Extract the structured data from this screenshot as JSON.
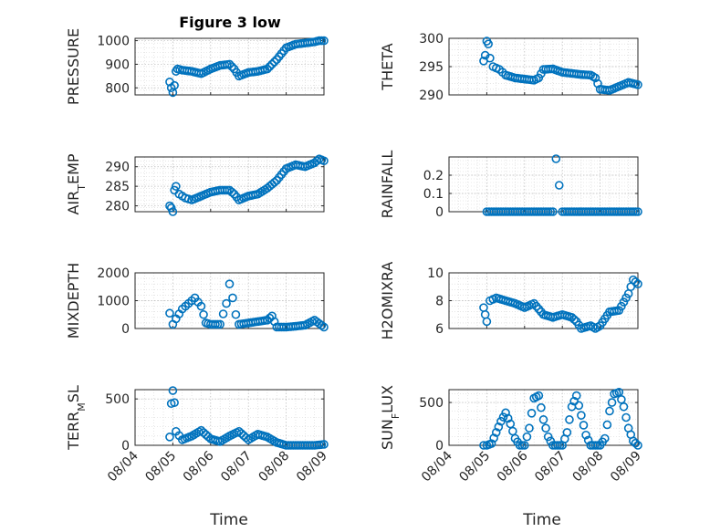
{
  "figure_title": "Figure 3 low",
  "colors": {
    "marker": "#0072BD",
    "axis": "#262626"
  },
  "chart_data": [
    {
      "type": "scatter",
      "ylabel": "PRESSURE",
      "ylim": [
        770,
        1010
      ],
      "yticks": [
        800,
        900,
        1000
      ],
      "ytick_labels": [
        "800",
        "900",
        "1000"
      ],
      "x": [
        "08/04 22:00",
        "08/04 23:00",
        "08/05 00:00",
        "08/05 01:00",
        "08/05 02:00",
        "08/05 03:00",
        "08/05 06:00",
        "08/05 12:00",
        "08/05 18:00",
        "08/06 00:00",
        "08/06 06:00",
        "08/06 12:00",
        "08/06 15:00",
        "08/06 18:00",
        "08/07 00:00",
        "08/07 06:00",
        "08/07 12:00",
        "08/07 18:00",
        "08/08 00:00",
        "08/08 06:00",
        "08/08 12:00",
        "08/08 18:00",
        "08/08 21:00",
        "08/09 00:00"
      ],
      "y": [
        825,
        800,
        780,
        810,
        870,
        880,
        875,
        870,
        860,
        880,
        895,
        900,
        880,
        850,
        865,
        870,
        880,
        920,
        970,
        985,
        990,
        995,
        1000,
        1000
      ]
    },
    {
      "type": "scatter",
      "ylabel": "THETA",
      "ylim": [
        290,
        300
      ],
      "yticks": [
        290,
        295,
        300
      ],
      "ytick_labels": [
        "290",
        "295",
        "300"
      ],
      "x": [
        "08/04 22:00",
        "08/04 23:00",
        "08/05 00:00",
        "08/05 01:00",
        "08/05 02:00",
        "08/05 04:00",
        "08/05 08:00",
        "08/05 12:00",
        "08/05 18:00",
        "08/06 00:00",
        "08/06 06:00",
        "08/06 09:00",
        "08/06 12:00",
        "08/06 18:00",
        "08/07 00:00",
        "08/07 06:00",
        "08/07 12:00",
        "08/07 18:00",
        "08/07 21:00",
        "08/08 00:00",
        "08/08 06:00",
        "08/08 12:00",
        "08/08 18:00",
        "08/09 00:00"
      ],
      "y": [
        296,
        297,
        299.5,
        299,
        296.5,
        295,
        294.5,
        293.5,
        293,
        292.8,
        292.6,
        293,
        294.5,
        294.6,
        294,
        293.8,
        293.6,
        293.5,
        293,
        291,
        290.8,
        291.5,
        292.2,
        291.8
      ]
    },
    {
      "type": "scatter",
      "ylabel": "AIR_TEMP",
      "ylim": [
        278.5,
        292.5
      ],
      "yticks": [
        280,
        285,
        290
      ],
      "ytick_labels": [
        "280",
        "285",
        "290"
      ],
      "x": [
        "08/04 22:00",
        "08/04 23:00",
        "08/05 00:00",
        "08/05 01:00",
        "08/05 02:00",
        "08/05 04:00",
        "08/05 08:00",
        "08/05 12:00",
        "08/05 18:00",
        "08/06 00:00",
        "08/06 06:00",
        "08/06 12:00",
        "08/06 15:00",
        "08/06 18:00",
        "08/07 00:00",
        "08/07 06:00",
        "08/07 12:00",
        "08/07 18:00",
        "08/08 00:00",
        "08/08 06:00",
        "08/08 12:00",
        "08/08 18:00",
        "08/08 21:00",
        "08/09 00:00"
      ],
      "y": [
        280,
        279.5,
        278.5,
        284,
        285,
        283,
        282,
        281.5,
        282.5,
        283.5,
        284,
        284,
        283,
        281.5,
        282.5,
        283,
        284.5,
        286.5,
        289.5,
        290.5,
        290,
        291,
        292,
        291.5
      ]
    },
    {
      "type": "scatter",
      "ylabel": "RAINFALL",
      "ylim": [
        0,
        0.3
      ],
      "yticks": [
        0,
        0.1,
        0.2
      ],
      "ytick_labels": [
        "0",
        "0.1",
        "0.2"
      ],
      "x": [
        "08/05 00:00",
        "08/05 06:00",
        "08/05 12:00",
        "08/05 18:00",
        "08/06 00:00",
        "08/06 06:00",
        "08/06 12:00",
        "08/06 18:00",
        "08/06 20:00",
        "08/07 00:00",
        "08/07 06:00",
        "08/07 12:00",
        "08/07 18:00",
        "08/08 00:00",
        "08/08 06:00",
        "08/08 12:00",
        "08/08 18:00",
        "08/09 00:00"
      ],
      "y": [
        0,
        0,
        0,
        0,
        0,
        0,
        0,
        0,
        0.29,
        0,
        0,
        0,
        0,
        0,
        0,
        0,
        0,
        0
      ]
    },
    {
      "type": "scatter",
      "ylabel": "MIXDEPTH",
      "ylim": [
        0,
        2000
      ],
      "yticks": [
        0,
        1000,
        2000
      ],
      "ytick_labels": [
        "0",
        "1000",
        "2000"
      ],
      "x": [
        "08/04 22:00",
        "08/05 00:00",
        "08/05 02:00",
        "08/05 06:00",
        "08/05 10:00",
        "08/05 14:00",
        "08/05 18:00",
        "08/05 21:00",
        "08/06 00:00",
        "08/06 06:00",
        "08/06 10:00",
        "08/06 12:00",
        "08/06 14:00",
        "08/06 16:00",
        "08/06 18:00",
        "08/07 00:00",
        "08/07 06:00",
        "08/07 12:00",
        "08/07 15:00",
        "08/07 18:00",
        "08/08 00:00",
        "08/08 06:00",
        "08/08 12:00",
        "08/08 18:00",
        "08/09 00:00"
      ],
      "y": [
        550,
        150,
        350,
        700,
        900,
        1100,
        800,
        200,
        150,
        150,
        900,
        1600,
        1100,
        500,
        150,
        200,
        250,
        300,
        450,
        50,
        50,
        80,
        120,
        300,
        50
      ]
    },
    {
      "type": "scatter",
      "ylabel": "H2OMIXRA",
      "ylim": [
        6,
        10
      ],
      "yticks": [
        6,
        8,
        10
      ],
      "ytick_labels": [
        "6",
        "8",
        "10"
      ],
      "x": [
        "08/04 22:00",
        "08/04 23:00",
        "08/05 00:00",
        "08/05 02:00",
        "08/05 06:00",
        "08/05 12:00",
        "08/05 18:00",
        "08/06 00:00",
        "08/06 06:00",
        "08/06 12:00",
        "08/06 18:00",
        "08/07 00:00",
        "08/07 06:00",
        "08/07 09:00",
        "08/07 12:00",
        "08/07 18:00",
        "08/07 21:00",
        "08/08 00:00",
        "08/08 06:00",
        "08/08 12:00",
        "08/08 18:00",
        "08/08 21:00",
        "08/09 00:00"
      ],
      "y": [
        7.5,
        7,
        6.5,
        8,
        8.2,
        8,
        7.8,
        7.5,
        7.8,
        7,
        6.8,
        7,
        6.8,
        6.5,
        6,
        6.2,
        6,
        6.2,
        7.2,
        7.3,
        8.5,
        9.5,
        9.2
      ]
    },
    {
      "type": "scatter",
      "ylabel": "TERR_MSL",
      "ylim": [
        0,
        600
      ],
      "yticks": [
        0,
        500
      ],
      "ytick_labels": [
        "0",
        "500"
      ],
      "x": [
        "08/04 22:00",
        "08/04 23:00",
        "08/05 00:00",
        "08/05 01:00",
        "08/05 02:00",
        "08/05 06:00",
        "08/05 12:00",
        "08/05 18:00",
        "08/06 00:00",
        "08/06 06:00",
        "08/06 12:00",
        "08/06 18:00",
        "08/07 00:00",
        "08/07 06:00",
        "08/07 12:00",
        "08/07 18:00",
        "08/08 00:00",
        "08/08 06:00",
        "08/08 12:00",
        "08/08 18:00",
        "08/09 00:00"
      ],
      "y": [
        90,
        450,
        590,
        460,
        150,
        60,
        100,
        160,
        70,
        40,
        100,
        150,
        60,
        120,
        90,
        30,
        0,
        0,
        0,
        0,
        10
      ]
    },
    {
      "type": "scatter",
      "ylabel": "SUN_FLUX",
      "ylim": [
        0,
        650
      ],
      "yticks": [
        0,
        500
      ],
      "ytick_labels": [
        "0",
        "500"
      ],
      "x": [
        "08/04 22:00",
        "08/05 00:00",
        "08/05 03:00",
        "08/05 06:00",
        "08/05 09:00",
        "08/05 12:00",
        "08/05 15:00",
        "08/05 18:00",
        "08/05 21:00",
        "08/06 00:00",
        "08/06 03:00",
        "08/06 06:00",
        "08/06 09:00",
        "08/06 12:00",
        "08/06 15:00",
        "08/06 18:00",
        "08/06 21:00",
        "08/07 00:00",
        "08/07 03:00",
        "08/07 06:00",
        "08/07 09:00",
        "08/07 12:00",
        "08/07 15:00",
        "08/07 18:00",
        "08/07 21:00",
        "08/08 00:00",
        "08/08 03:00",
        "08/08 06:00",
        "08/08 09:00",
        "08/08 12:00",
        "08/08 15:00",
        "08/08 18:00",
        "08/08 21:00",
        "08/09 00:00"
      ],
      "y": [
        0,
        0,
        20,
        150,
        280,
        380,
        250,
        80,
        0,
        0,
        200,
        550,
        580,
        300,
        100,
        0,
        0,
        0,
        150,
        450,
        580,
        350,
        120,
        0,
        0,
        0,
        80,
        400,
        600,
        620,
        450,
        200,
        50,
        0
      ]
    }
  ],
  "x_axis": {
    "ticks": [
      "08/04",
      "08/05",
      "08/06",
      "08/07",
      "08/08",
      "08/09"
    ],
    "label": "Time"
  }
}
